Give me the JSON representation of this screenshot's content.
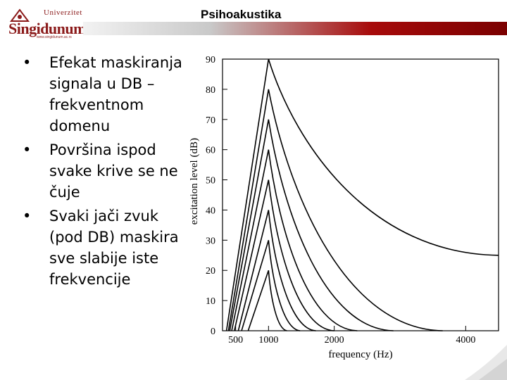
{
  "logo": {
    "top_text": "Univerzitet",
    "main_text": "Singidunum",
    "url_text": "www.singidunum.ac.rs"
  },
  "slide": {
    "title": "Psihoakustika",
    "bullets": [
      "Efekat maskiranja signala u DB – frekventnom domenu",
      "Površina ispod svake krive se ne čuje",
      "Svaki jači zvuk (pod DB) maskira sve slabije iste frekvencije"
    ],
    "bullet_glyph": "•"
  },
  "chart_data": {
    "type": "line",
    "xlabel": "frequency (Hz)",
    "ylabel": "excitation level (dB)",
    "x_ticks": [
      500,
      1000,
      2000,
      4000
    ],
    "y_ticks": [
      0,
      10,
      20,
      30,
      40,
      50,
      60,
      70,
      80,
      90
    ],
    "xlim": [
      300,
      4500
    ],
    "ylim": [
      0,
      90
    ],
    "series": [
      {
        "peak": 20,
        "x": [
          690,
          1000,
          1280
        ],
        "y": [
          0,
          20,
          0
        ]
      },
      {
        "peak": 30,
        "x": [
          590,
          1000,
          1480
        ],
        "y": [
          0,
          30,
          0
        ]
      },
      {
        "peak": 40,
        "x": [
          540,
          1000,
          1720
        ],
        "y": [
          0,
          40,
          0
        ]
      },
      {
        "peak": 50,
        "x": [
          480,
          1000,
          2000
        ],
        "y": [
          0,
          50,
          0
        ]
      },
      {
        "peak": 60,
        "x": [
          440,
          1000,
          2350
        ],
        "y": [
          0,
          60,
          0
        ]
      },
      {
        "peak": 70,
        "x": [
          410,
          1000,
          2900
        ],
        "y": [
          0,
          70,
          0
        ]
      },
      {
        "peak": 80,
        "x": [
          390,
          1000,
          3650
        ],
        "y": [
          0,
          80,
          0
        ]
      },
      {
        "peak": 90,
        "x": [
          360,
          1000,
          4500
        ],
        "y": [
          0,
          90,
          25
        ]
      }
    ],
    "grid": false,
    "colors": {
      "line": "#000000",
      "axis": "#000000"
    }
  }
}
